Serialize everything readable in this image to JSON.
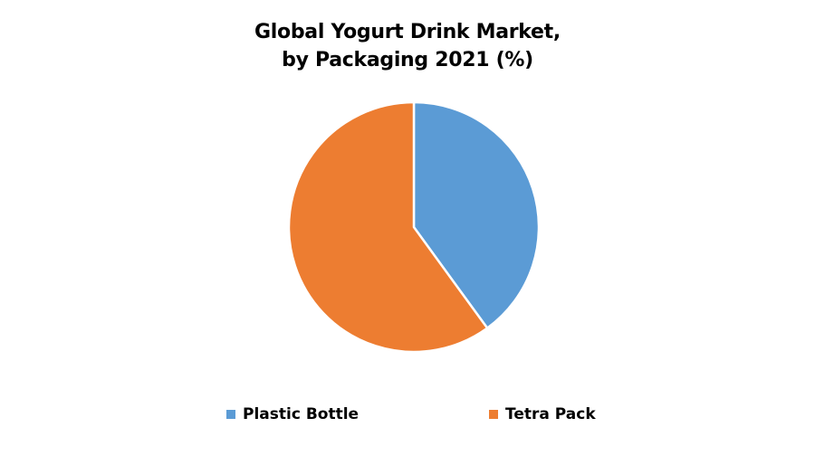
{
  "title": {
    "line1": "Global Yogurt Drink Market,",
    "line2": "by Packaging 2021 (%)"
  },
  "legend": [
    {
      "label": "Plastic Bottle",
      "color": "#5b9bd5"
    },
    {
      "label": "Tetra Pack",
      "color": "#ed7d31"
    }
  ],
  "chart_data": {
    "type": "pie",
    "title": "Global Yogurt Drink Market, by Packaging 2021 (%)",
    "categories": [
      "Plastic Bottle",
      "Tetra Pack"
    ],
    "values": [
      40,
      60
    ],
    "colors": [
      "#5b9bd5",
      "#ed7d31"
    ],
    "start_angle_deg": 0,
    "direction": "clockwise",
    "data_labels": false,
    "legend_position": "bottom"
  }
}
